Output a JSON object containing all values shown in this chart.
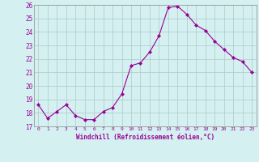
{
  "x": [
    0,
    1,
    2,
    3,
    4,
    5,
    6,
    7,
    8,
    9,
    10,
    11,
    12,
    13,
    14,
    15,
    16,
    17,
    18,
    19,
    20,
    21,
    22,
    23
  ],
  "y": [
    18.6,
    17.6,
    18.1,
    18.6,
    17.8,
    17.5,
    17.5,
    18.1,
    18.4,
    19.4,
    21.5,
    21.7,
    22.5,
    23.7,
    25.8,
    25.9,
    25.3,
    24.5,
    24.1,
    23.3,
    22.7,
    22.1,
    21.8,
    21.0
  ],
  "line_color": "#990099",
  "marker": "D",
  "marker_size": 2,
  "bg_color": "#d4f0f0",
  "grid_color": "#b0c8c8",
  "xlabel": "Windchill (Refroidissement éolien,°C)",
  "xlabel_color": "#990099",
  "tick_color": "#990099",
  "ylim": [
    17,
    26
  ],
  "yticks": [
    17,
    18,
    19,
    20,
    21,
    22,
    23,
    24,
    25,
    26
  ],
  "xticks": [
    0,
    1,
    2,
    3,
    4,
    5,
    6,
    7,
    8,
    9,
    10,
    11,
    12,
    13,
    14,
    15,
    16,
    17,
    18,
    19,
    20,
    21,
    22,
    23
  ]
}
